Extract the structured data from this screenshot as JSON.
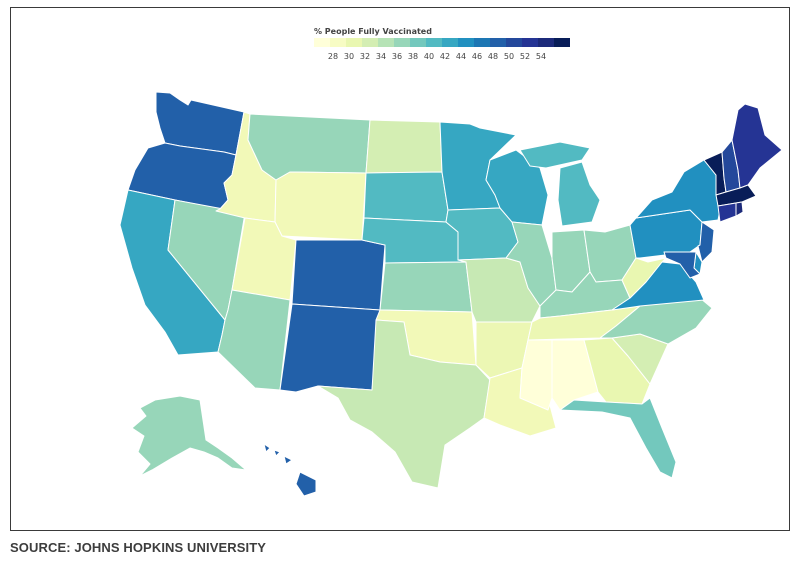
{
  "legend": {
    "title": "% People Fully Vaccinated",
    "colors": [
      "#ffffd9",
      "#f7fcc4",
      "#e9f7b1",
      "#d4eeb3",
      "#b6e3b6",
      "#97d6b9",
      "#73c8bd",
      "#52bac2",
      "#36a7c2",
      "#2190c0",
      "#1d77b4",
      "#2260a9",
      "#24489b",
      "#253494",
      "#1c2a7a",
      "#081d58"
    ],
    "ticks": [
      "28",
      "30",
      "32",
      "34",
      "36",
      "38",
      "40",
      "42",
      "44",
      "46",
      "48",
      "50",
      "52",
      "54"
    ]
  },
  "states": {
    "WA": "#2260a9",
    "OR": "#2260a9",
    "CA": "#36a7c2",
    "NV": "#97d6b9",
    "ID": "#f2f9b8",
    "MT": "#97d6b9",
    "WY": "#f2f9b8",
    "UT": "#f2f9b8",
    "AZ": "#97d6b9",
    "NM": "#2260a9",
    "CO": "#2260a9",
    "ND": "#d4eeb3",
    "SD": "#52bac2",
    "NE": "#52bac2",
    "KS": "#97d6b9",
    "OK": "#f2f9b8",
    "TX": "#c7e9b4",
    "MN": "#36a7c2",
    "IA": "#52bac2",
    "MO": "#c7e9b4",
    "AR": "#ecf7b4",
    "LA": "#f2f9b8",
    "WI": "#36a7c2",
    "IL": "#97d6b9",
    "MI": "#52bac2",
    "IN": "#97d6b9",
    "OH": "#97d6b9",
    "KY": "#97d6b9",
    "TN": "#ecf7b4",
    "MS": "#ffffd9",
    "AL": "#ffffd9",
    "GA": "#e9f7b1",
    "FL": "#73c8bd",
    "SC": "#d4eeb3",
    "NC": "#97d6b9",
    "VA": "#2190c0",
    "WV": "#e9f7b1",
    "PA": "#2190c0",
    "NY": "#2190c0",
    "VT": "#081d58",
    "NH": "#24489b",
    "ME": "#253494",
    "MA": "#081d58",
    "RI": "#1c2a7a",
    "CT": "#253494",
    "NJ": "#2260a9",
    "DE": "#2190c0",
    "MD": "#2260a9",
    "AK": "#97d6b9",
    "HI": "#2260a9"
  },
  "source": "SOURCE: JOHNS HOPKINS UNIVERSITY"
}
